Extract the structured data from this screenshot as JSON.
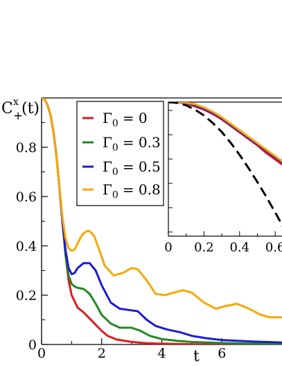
{
  "chart_data": [
    {
      "type": "line",
      "ylabel_main": "C",
      "ylabel_sup": "x",
      "ylabel_sub": "+",
      "ylabel_arg": "(t)",
      "xlabel": "t",
      "xlim": [
        0,
        8
      ],
      "ylim": [
        0,
        1
      ],
      "x_ticks": [
        {
          "value": 0,
          "label": "0"
        },
        {
          "value": 2,
          "label": "2"
        },
        {
          "value": 4,
          "label": "4"
        },
        {
          "value": 6,
          "label": "6"
        }
      ],
      "y_ticks": [
        {
          "value": 0,
          "label": "0"
        },
        {
          "value": 0.2,
          "label": "0.2"
        },
        {
          "value": 0.4,
          "label": "0.4"
        },
        {
          "value": 0.6,
          "label": "0.6"
        },
        {
          "value": 0.8,
          "label": "0.8"
        }
      ],
      "legend_position": "top-left",
      "series": [
        {
          "name": "Γ0 = 0",
          "legend_symbol": "Γ",
          "legend_sub": "0",
          "legend_value": "= 0",
          "color": "#e41a1c",
          "x": [
            0,
            0.1,
            0.2,
            0.3,
            0.4,
            0.5,
            0.6,
            0.7,
            0.8,
            0.9,
            1.0,
            1.2,
            1.4,
            1.6,
            1.8,
            2.0,
            2.2,
            2.5,
            3.0,
            3.5,
            4.0,
            5.0,
            6.0,
            7.0,
            8.0
          ],
          "y": [
            1.0,
            0.995,
            0.97,
            0.93,
            0.86,
            0.76,
            0.63,
            0.49,
            0.36,
            0.26,
            0.2,
            0.15,
            0.13,
            0.105,
            0.08,
            0.055,
            0.035,
            0.02,
            0.01,
            0.005,
            0.003,
            0.001,
            0.0,
            0.0,
            0.0
          ]
        },
        {
          "name": "Γ0 = 0.3",
          "legend_symbol": "Γ",
          "legend_sub": "0",
          "legend_value": "= 0.3",
          "color": "#1f8a1f",
          "x": [
            0,
            0.1,
            0.2,
            0.3,
            0.4,
            0.5,
            0.6,
            0.7,
            0.8,
            0.9,
            1.0,
            1.1,
            1.2,
            1.4,
            1.6,
            1.8,
            2.0,
            2.3,
            2.6,
            3.0,
            3.3,
            3.6,
            4.0,
            4.5,
            5.0,
            6.0,
            7.0,
            8.0
          ],
          "y": [
            1.0,
            0.995,
            0.97,
            0.93,
            0.86,
            0.76,
            0.63,
            0.49,
            0.36,
            0.28,
            0.245,
            0.235,
            0.23,
            0.225,
            0.205,
            0.165,
            0.12,
            0.085,
            0.068,
            0.068,
            0.055,
            0.035,
            0.022,
            0.015,
            0.01,
            0.006,
            0.003,
            0.002
          ]
        },
        {
          "name": "Γ0 = 0.5",
          "legend_symbol": "Γ",
          "legend_sub": "0",
          "legend_value": "= 0.5",
          "color": "#1a1ad8",
          "x": [
            0,
            0.1,
            0.2,
            0.3,
            0.4,
            0.5,
            0.6,
            0.7,
            0.8,
            0.9,
            1.0,
            1.1,
            1.2,
            1.4,
            1.6,
            1.8,
            2.0,
            2.3,
            2.6,
            2.9,
            3.2,
            3.5,
            3.8,
            4.2,
            4.6,
            5.0,
            5.5,
            6.0,
            7.0,
            8.0
          ],
          "y": [
            1.0,
            0.995,
            0.97,
            0.93,
            0.86,
            0.76,
            0.63,
            0.49,
            0.38,
            0.31,
            0.285,
            0.29,
            0.31,
            0.33,
            0.33,
            0.3,
            0.24,
            0.17,
            0.145,
            0.14,
            0.135,
            0.1,
            0.075,
            0.06,
            0.05,
            0.035,
            0.025,
            0.018,
            0.012,
            0.008
          ]
        },
        {
          "name": "Γ0 = 0.8",
          "legend_symbol": "Γ",
          "legend_sub": "0",
          "legend_value": "= 0.8",
          "color": "#f7a800",
          "x": [
            0,
            0.1,
            0.2,
            0.3,
            0.4,
            0.5,
            0.6,
            0.7,
            0.8,
            0.9,
            1.0,
            1.1,
            1.2,
            1.35,
            1.5,
            1.6,
            1.75,
            1.9,
            2.1,
            2.4,
            2.7,
            3.0,
            3.2,
            3.5,
            3.8,
            4.1,
            4.4,
            4.7,
            5.0,
            5.4,
            5.8,
            6.1,
            6.5,
            6.9,
            7.3,
            7.6,
            8.0
          ],
          "y": [
            1.0,
            0.995,
            0.97,
            0.93,
            0.86,
            0.76,
            0.63,
            0.51,
            0.43,
            0.39,
            0.38,
            0.385,
            0.41,
            0.445,
            0.46,
            0.46,
            0.44,
            0.39,
            0.32,
            0.28,
            0.29,
            0.31,
            0.305,
            0.26,
            0.205,
            0.2,
            0.21,
            0.22,
            0.21,
            0.17,
            0.145,
            0.155,
            0.165,
            0.145,
            0.12,
            0.11,
            0.11
          ]
        }
      ]
    },
    {
      "type": "line",
      "role": "inset",
      "xlim": [
        0,
        0.65
      ],
      "ylim": [
        0.38,
        1.0
      ],
      "x_ticks": [
        {
          "value": 0,
          "label": "0"
        },
        {
          "value": 0.2,
          "label": "0.2"
        },
        {
          "value": 0.4,
          "label": "0.4"
        },
        {
          "value": 0.6,
          "label": "0.6"
        }
      ],
      "series": [
        {
          "color": "#e41a1c",
          "x": [
            0,
            0.05,
            0.1,
            0.15,
            0.2,
            0.25,
            0.3,
            0.35,
            0.4,
            0.45,
            0.5,
            0.55,
            0.6,
            0.65
          ],
          "y": [
            1.0,
            0.999,
            0.995,
            0.98,
            0.965,
            0.945,
            0.92,
            0.89,
            0.86,
            0.83,
            0.8,
            0.765,
            0.735,
            0.705
          ]
        },
        {
          "color": "#1a1ad8",
          "x": [
            0,
            0.05,
            0.1,
            0.15,
            0.2,
            0.25,
            0.3,
            0.35,
            0.4,
            0.45,
            0.5,
            0.55,
            0.6,
            0.65
          ],
          "y": [
            1.0,
            0.999,
            0.996,
            0.985,
            0.97,
            0.95,
            0.925,
            0.895,
            0.865,
            0.835,
            0.805,
            0.775,
            0.745,
            0.715
          ]
        },
        {
          "color": "#f7a800",
          "x": [
            0,
            0.05,
            0.1,
            0.15,
            0.2,
            0.25,
            0.3,
            0.35,
            0.4,
            0.45,
            0.5,
            0.55,
            0.6,
            0.65
          ],
          "y": [
            1.0,
            1.0,
            0.997,
            0.99,
            0.975,
            0.955,
            0.93,
            0.9,
            0.87,
            0.84,
            0.81,
            0.78,
            0.75,
            0.72
          ]
        },
        {
          "color": "#000000",
          "dashed": true,
          "x": [
            0,
            0.05,
            0.1,
            0.15,
            0.2,
            0.25,
            0.3,
            0.35,
            0.4,
            0.45,
            0.5,
            0.55,
            0.6,
            0.65
          ],
          "y": [
            1.0,
            0.996,
            0.985,
            0.965,
            0.938,
            0.903,
            0.862,
            0.812,
            0.756,
            0.695,
            0.63,
            0.562,
            0.49,
            0.415
          ]
        }
      ]
    }
  ]
}
